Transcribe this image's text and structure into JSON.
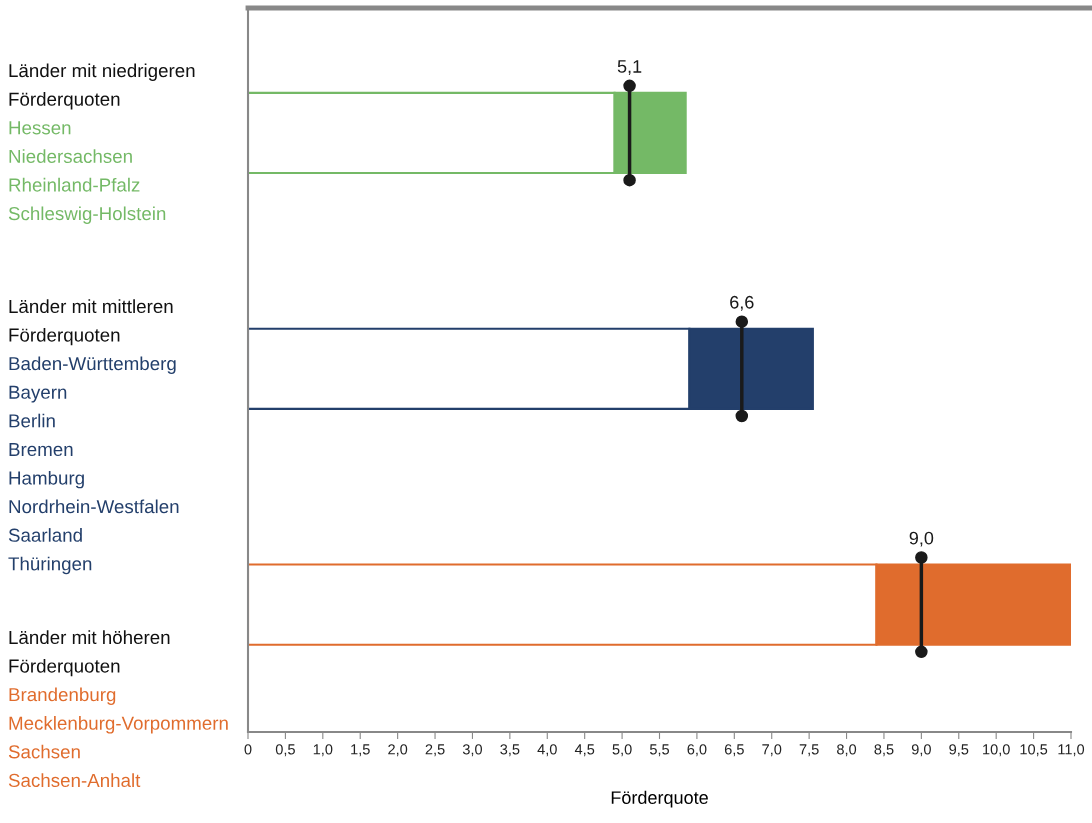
{
  "chart_data": {
    "type": "bar",
    "orientation": "horizontal",
    "stacked": true,
    "categories": [
      "Länder mit niedrigeren Förderquoten",
      "Länder mit mittleren Förderquoten",
      "Länder mit höheren Förderquoten"
    ],
    "series": [
      {
        "color": "#ffffff",
        "values": [
          4.9,
          5.9,
          8.4
        ]
      },
      {
        "colors": [
          "#74b966",
          "#233f6b",
          "#e06c2d"
        ],
        "values": [
          0.95,
          1.65,
          2.6
        ]
      },
      {
        "type": "scatter",
        "color": "#1a1a1a",
        "marker": "circle",
        "values": [
          5.1,
          6.6,
          9.0
        ],
        "value_labels": [
          "5,1",
          "6,6",
          "9,0"
        ]
      }
    ],
    "annotations": [
      "Hessen\nNiedersachsen\nRheinland-Pfalz\nSchleswig-Holstein",
      "Baden-Württemberg\nBayern\nBerlin\nBremen\nHamburg\nNordrhein-Westfalen\nSaarland\nThüringen",
      "Brandenburg\nMecklenburg-Vorpommern\nSachsen\nSachsen-Anhalt"
    ],
    "xlabel": "Förderquote",
    "xlim": [
      0,
      11
    ],
    "xticks": [
      0,
      {
        "value": 0.5,
        "label": "0,5"
      },
      {
        "value": 1,
        "label": "1,0"
      },
      {
        "value": 1.5,
        "label": "1,5"
      },
      {
        "value": 2,
        "label": "2,0"
      },
      {
        "value": 2.5,
        "label": "2,5"
      },
      {
        "value": 3,
        "label": "3,0"
      },
      {
        "value": 3.5,
        "label": "3,5"
      },
      {
        "value": 4,
        "label": "4,0"
      },
      {
        "value": 4.5,
        "label": "4,5"
      },
      {
        "value": 5,
        "label": "5,0"
      },
      {
        "value": 5.5,
        "label": "5,5"
      },
      {
        "value": 6,
        "label": "6,0"
      },
      {
        "value": 6.5,
        "label": "6,5"
      },
      {
        "value": 7,
        "label": "7,0"
      },
      {
        "value": 7.5,
        "label": "7,5"
      },
      {
        "value": 8,
        "label": "8,0"
      },
      {
        "value": 8.5,
        "label": "8,5"
      },
      {
        "value": 9,
        "label": "9,0"
      },
      {
        "value": 9.5,
        "label": "9,5"
      },
      {
        "value": 10,
        "label": "10,0"
      },
      {
        "value": 10.5,
        "label": "10,5"
      },
      {
        "value": 11,
        "label": "11,0"
      }
    ],
    "tick_labels": "x",
    "grid": false,
    "legend": false
  }
}
